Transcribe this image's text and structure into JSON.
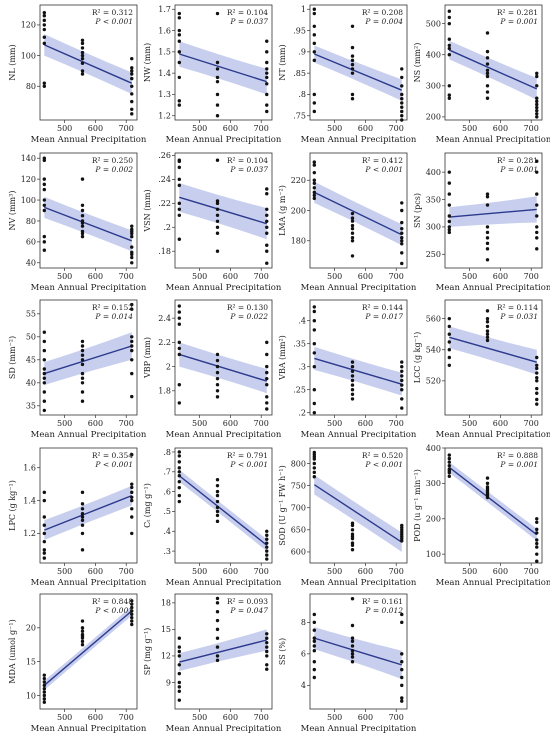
{
  "x_axis_label": "Mean Annual Precipitation",
  "x_ticks": [
    500,
    600,
    700
  ],
  "x_range": [
    420,
    735
  ],
  "x_groups": [
    434,
    558,
    718
  ],
  "colors": {
    "band": "#5566c8",
    "line": "#2b3a8c",
    "point": "#111111",
    "frame": "#333333"
  },
  "chart_data": [
    {
      "type": "scatter",
      "ylabel": "NL (mm)",
      "ylim": [
        58,
        133
      ],
      "yticks": [
        80,
        100,
        120
      ],
      "r2_text": "R² = 0.312",
      "p_text": "P < 0.001",
      "groups": [
        [
          128,
          126,
          123,
          120,
          117,
          112,
          108,
          82,
          80
        ],
        [
          110,
          108,
          105,
          102,
          100,
          98,
          95,
          90,
          88
        ],
        [
          98,
          92,
          90,
          88,
          85,
          80,
          75,
          70,
          65,
          62
        ]
      ],
      "fit": [
        107,
        82
      ],
      "ci": [
        [
          100,
          114
        ],
        [
          75,
          89
        ]
      ]
    },
    {
      "type": "scatter",
      "ylabel": "NW (mm)",
      "ylim": [
        1.18,
        1.72
      ],
      "yticks": [
        1.2,
        1.3,
        1.4,
        1.5,
        1.6,
        1.7
      ],
      "r2_text": "R² = 0.104",
      "p_text": "P = 0.037",
      "groups": [
        [
          1.68,
          1.66,
          1.6,
          1.58,
          1.55,
          1.5,
          1.45,
          1.38,
          1.27,
          1.25
        ],
        [
          1.68,
          1.45,
          1.42,
          1.38,
          1.36,
          1.3,
          1.25,
          1.2
        ],
        [
          1.55,
          1.5,
          1.45,
          1.42,
          1.4,
          1.38,
          1.35,
          1.3,
          1.25,
          1.22
        ]
      ],
      "fit": [
        1.49,
        1.36
      ],
      "ci": [
        [
          1.43,
          1.55
        ],
        [
          1.3,
          1.42
        ]
      ]
    },
    {
      "type": "scatter",
      "ylabel": "NT (mm)",
      "ylim": [
        0.74,
        1.01
      ],
      "yticks": [
        0.75,
        0.8,
        0.85,
        0.9,
        0.95,
        1.0
      ],
      "r2_text": "R² = 0.208",
      "p_text": "P = 0.004",
      "groups": [
        [
          1.0,
          0.99,
          0.96,
          0.94,
          0.92,
          0.9,
          0.88,
          0.8,
          0.78,
          0.76
        ],
        [
          0.96,
          0.91,
          0.89,
          0.88,
          0.87,
          0.86,
          0.85,
          0.8,
          0.79
        ],
        [
          0.86,
          0.84,
          0.82,
          0.8,
          0.79,
          0.78,
          0.77,
          0.76,
          0.75,
          0.74
        ]
      ],
      "fit": [
        0.895,
        0.81
      ],
      "ci": [
        [
          0.875,
          0.915
        ],
        [
          0.785,
          0.835
        ]
      ]
    },
    {
      "type": "scatter",
      "ylabel": "NS (mm²)",
      "ylim": [
        190,
        560
      ],
      "yticks": [
        200,
        300,
        400,
        500
      ],
      "r2_text": "R² = 0.281",
      "p_text": "P = 0.001",
      "groups": [
        [
          540,
          520,
          500,
          450,
          430,
          420,
          400,
          300,
          270,
          260
        ],
        [
          470,
          410,
          390,
          370,
          350,
          340,
          330,
          300,
          280,
          260
        ],
        [
          340,
          330,
          300,
          260,
          250,
          240,
          230,
          220,
          210,
          200
        ]
      ],
      "fit": [
        415,
        290
      ],
      "ci": [
        [
          385,
          445
        ],
        [
          255,
          325
        ]
      ]
    },
    {
      "type": "scatter",
      "ylabel": "NV (mm³)",
      "ylim": [
        35,
        145
      ],
      "yticks": [
        40,
        60,
        80,
        100,
        120,
        140
      ],
      "r2_text": "R² = 0.250",
      "p_text": "P = 0.002",
      "groups": [
        [
          140,
          138,
          120,
          115,
          110,
          100,
          95,
          90,
          65,
          60,
          52
        ],
        [
          120,
          95,
          90,
          85,
          80,
          78,
          75,
          70,
          68,
          65
        ],
        [
          75,
          72,
          70,
          68,
          65,
          55,
          50,
          48,
          45,
          40
        ]
      ],
      "fit": [
        93,
        61
      ],
      "ci": [
        [
          83,
          103
        ],
        [
          51,
          71
        ]
      ]
    },
    {
      "type": "scatter",
      "ylabel": "VSN (mm)",
      "ylim": [
        0.166,
        0.262
      ],
      "yticks": [
        0.18,
        0.2,
        0.22,
        0.24,
        0.26
      ],
      "r2_text": "R² = 0.104",
      "p_text": "P = 0.037",
      "groups": [
        [
          0.256,
          0.255,
          0.25,
          0.24,
          0.235,
          0.22,
          0.215,
          0.21,
          0.19
        ],
        [
          0.256,
          0.222,
          0.22,
          0.215,
          0.21,
          0.205,
          0.2,
          0.195,
          0.18
        ],
        [
          0.232,
          0.228,
          0.215,
          0.21,
          0.205,
          0.2,
          0.195,
          0.185,
          0.18,
          0.17
        ]
      ],
      "fit": [
        0.225,
        0.203
      ],
      "ci": [
        [
          0.213,
          0.237
        ],
        [
          0.19,
          0.216
        ]
      ]
    },
    {
      "type": "scatter",
      "ylabel": "LMA (g m⁻²)",
      "ylim": [
        162,
        238
      ],
      "yticks": [
        180,
        200,
        220
      ],
      "r2_text": "R² = 0.412",
      "p_text": "P < 0.001",
      "groups": [
        [
          232,
          230,
          225,
          220,
          218,
          215,
          212,
          210,
          208
        ],
        [
          198,
          195,
          193,
          190,
          188,
          185,
          182,
          180,
          170
        ],
        [
          205,
          200,
          192,
          188,
          185,
          182,
          180,
          178,
          172,
          165
        ]
      ],
      "fit": [
        212,
        184
      ],
      "ci": [
        [
          205,
          219
        ],
        [
          177,
          191
        ]
      ]
    },
    {
      "type": "scatter",
      "ylabel": "SN (pcs)",
      "ylim": [
        225,
        435
      ],
      "yticks": [
        250,
        300,
        350,
        400
      ],
      "r2_text": "R² = 0.281",
      "p_text": "P = 0.001",
      "groups": [
        [
          400,
          380,
          360,
          340,
          320,
          310,
          300,
          295,
          290
        ],
        [
          360,
          355,
          340,
          300,
          290,
          280,
          270,
          260,
          240
        ],
        [
          420,
          400,
          360,
          340,
          320,
          300,
          290,
          280,
          260
        ]
      ],
      "fit": [
        318,
        332
      ],
      "ci": [
        [
          300,
          336
        ],
        [
          308,
          356
        ]
      ]
    },
    {
      "type": "scatter",
      "ylabel": "SD (mm⁻²)",
      "ylim": [
        33,
        58
      ],
      "yticks": [
        35,
        40,
        45,
        50,
        55
      ],
      "r2_text": "R² = 0.152",
      "p_text": "P = 0.014",
      "groups": [
        [
          51,
          49,
          47,
          45,
          43,
          42,
          41,
          40,
          38,
          36,
          34
        ],
        [
          49,
          48,
          47,
          46,
          45,
          44,
          42,
          41,
          40,
          38,
          36
        ],
        [
          57,
          56,
          50,
          49,
          48,
          47,
          45,
          42,
          37
        ]
      ],
      "fit": [
        42,
        48
      ],
      "ci": [
        [
          39.5,
          44.5
        ],
        [
          45,
          51
        ]
      ]
    },
    {
      "type": "scatter",
      "ylabel": "VBP (mm)",
      "ylim": [
        1.6,
        2.55
      ],
      "yticks": [
        1.8,
        2.0,
        2.2,
        2.4
      ],
      "r2_text": "R² = 0.130",
      "p_text": "P = 0.022",
      "groups": [
        [
          2.5,
          2.45,
          2.4,
          2.35,
          2.2,
          2.15,
          2.1,
          1.85,
          1.7
        ],
        [
          2.1,
          2.05,
          2.0,
          1.95,
          1.9,
          1.85,
          1.8,
          1.75
        ],
        [
          2.2,
          2.1,
          2.0,
          1.95,
          1.9,
          1.85,
          1.75,
          1.7,
          1.65
        ]
      ],
      "fit": [
        2.1,
        1.88
      ],
      "ci": [
        [
          2.0,
          2.2
        ],
        [
          1.78,
          1.98
        ]
      ]
    },
    {
      "type": "scatter",
      "ylabel": "VBA (mm²)",
      "ylim": [
        0.195,
        0.445
      ],
      "yticks": [
        0.2,
        0.25,
        0.3,
        0.35,
        0.4
      ],
      "r2_text": "R² = 0.144",
      "p_text": "P = 0.017",
      "groups": [
        [
          0.43,
          0.42,
          0.4,
          0.38,
          0.35,
          0.33,
          0.3,
          0.25,
          0.22,
          0.2
        ],
        [
          0.31,
          0.3,
          0.29,
          0.28,
          0.27,
          0.26,
          0.25,
          0.24,
          0.23
        ],
        [
          0.31,
          0.3,
          0.29,
          0.28,
          0.27,
          0.26,
          0.25,
          0.23,
          0.21
        ]
      ],
      "fit": [
        0.318,
        0.262
      ],
      "ci": [
        [
          0.293,
          0.343
        ],
        [
          0.237,
          0.287
        ]
      ]
    },
    {
      "type": "scatter",
      "ylabel": "LCC (g kg⁻¹)",
      "ylim": [
        498,
        572
      ],
      "yticks": [
        520,
        540,
        560
      ],
      "r2_text": "R² = 0.114",
      "p_text": "P = 0.031",
      "groups": [
        [
          560,
          555,
          550,
          545,
          540,
          535,
          530
        ],
        [
          565,
          560,
          558,
          555,
          552,
          550,
          548,
          546
        ],
        [
          535,
          530,
          528,
          525,
          522,
          520,
          515,
          512,
          508,
          505
        ]
      ],
      "fit": [
        548,
        532
      ],
      "ci": [
        [
          541,
          555
        ],
        [
          524,
          540
        ]
      ]
    },
    {
      "type": "scatter",
      "ylabel": "LPC (g kg⁻¹)",
      "ylim": [
        1.02,
        1.72
      ],
      "yticks": [
        1.2,
        1.4,
        1.6
      ],
      "r2_text": "R² = 0.354",
      "p_text": "P < 0.001",
      "groups": [
        [
          1.45,
          1.4,
          1.3,
          1.25,
          1.2,
          1.15,
          1.1,
          1.08,
          1.05
        ],
        [
          1.45,
          1.38,
          1.35,
          1.32,
          1.3,
          1.28,
          1.25,
          1.2,
          1.1
        ],
        [
          1.68,
          1.5,
          1.48,
          1.45,
          1.42,
          1.4,
          1.35,
          1.3,
          1.2
        ]
      ],
      "fit": [
        1.22,
        1.43
      ],
      "ci": [
        [
          1.16,
          1.28
        ],
        [
          1.37,
          1.49
        ]
      ]
    },
    {
      "type": "scatter",
      "ylabel": "Cₜ (mg g⁻¹)",
      "ylim": [
        0.24,
        0.82
      ],
      "yticks": [
        0.3,
        0.4,
        0.5,
        0.6,
        0.7,
        0.8
      ],
      "r2_text": "R² = 0.791",
      "p_text": "P < 0.001",
      "groups": [
        [
          0.8,
          0.78,
          0.75,
          0.72,
          0.7,
          0.68,
          0.65,
          0.62,
          0.58,
          0.55
        ],
        [
          0.66,
          0.63,
          0.6,
          0.58,
          0.55,
          0.52,
          0.5,
          0.48,
          0.45
        ],
        [
          0.4,
          0.38,
          0.36,
          0.34,
          0.32,
          0.3,
          0.28,
          0.26
        ]
      ],
      "fit": [
        0.68,
        0.33
      ],
      "ci": [
        [
          0.65,
          0.71
        ],
        [
          0.3,
          0.36
        ]
      ]
    },
    {
      "type": "scatter",
      "ylabel": "SOD (U g⁻¹ FW h⁻¹)",
      "ylim": [
        575,
        835
      ],
      "yticks": [
        600,
        650,
        700,
        750,
        800
      ],
      "r2_text": "R² = 0.520",
      "p_text": "P < 0.001",
      "groups": [
        [
          825,
          820,
          815,
          810,
          800,
          790,
          780,
          770
        ],
        [
          665,
          660,
          650,
          640,
          635,
          630,
          620,
          615,
          605
        ],
        [
          660,
          655,
          650,
          645,
          640,
          635,
          630,
          625
        ]
      ],
      "fit": [
        752,
        622
      ],
      "ci": [
        [
          730,
          774
        ],
        [
          600,
          644
        ]
      ]
    },
    {
      "type": "scatter",
      "ylabel": "POD (u g⁻¹ min⁻¹)",
      "ylim": [
        75,
        400
      ],
      "yticks": [
        100,
        200,
        300,
        400
      ],
      "r2_text": "R² = 0.888",
      "p_text": "P = 0.001",
      "groups": [
        [
          380,
          370,
          360,
          350,
          340,
          335,
          330,
          320
        ],
        [
          315,
          300,
          290,
          285,
          280,
          275,
          270,
          265,
          260
        ],
        [
          200,
          190,
          170,
          160,
          140,
          130,
          120,
          100,
          80
        ]
      ],
      "fit": [
        345,
        155
      ],
      "ci": [
        [
          330,
          360
        ],
        [
          138,
          172
        ]
      ]
    },
    {
      "type": "scatter",
      "ylabel": "MDA (umol g⁻¹)",
      "ylim": [
        8,
        25
      ],
      "yticks": [
        10,
        15,
        20
      ],
      "r2_text": "R² = 0.848",
      "p_text": "P < 0.001",
      "groups": [
        [
          13,
          12.5,
          12,
          11.5,
          11,
          10.5,
          10,
          9.5,
          9
        ],
        [
          21,
          20,
          19.5,
          19,
          18.8,
          18.5,
          18,
          17.5
        ],
        [
          24,
          23.5,
          23,
          22.5,
          22,
          21.5,
          21,
          20.5
        ]
      ],
      "fit": [
        11.5,
        22.5
      ],
      "ci": [
        [
          10.8,
          12.2
        ],
        [
          21.8,
          23.2
        ]
      ]
    },
    {
      "type": "scatter",
      "ylabel": "SP (mg g⁻¹)",
      "ylim": [
        6,
        19
      ],
      "yticks": [
        9,
        12,
        15,
        18
      ],
      "r2_text": "R² = 0.093",
      "p_text": "P = 0.047",
      "groups": [
        [
          14,
          13,
          12.5,
          12,
          11,
          10,
          9,
          8.5,
          8,
          7
        ],
        [
          18.5,
          18,
          17,
          16,
          15,
          14,
          13,
          12,
          11.5
        ],
        [
          14.5,
          14,
          13.5,
          13,
          12.5,
          12,
          11,
          10.5
        ]
      ],
      "fit": [
        11.3,
        13.8
      ],
      "ci": [
        [
          10.3,
          12.3
        ],
        [
          12.6,
          15.0
        ]
      ]
    },
    {
      "type": "scatter",
      "ylabel": "SS (%)",
      "ylim": [
        2.5,
        9.8
      ],
      "yticks": [
        4,
        6,
        8
      ],
      "r2_text": "R² = 0.161",
      "p_text": "P = 0.012",
      "groups": [
        [
          8.5,
          8,
          7.5,
          7,
          6.8,
          6.5,
          6.2,
          5.5,
          5,
          4.5
        ],
        [
          9.5,
          7.8,
          7,
          6.8,
          6.5,
          6.2,
          6,
          5.8,
          5.5
        ],
        [
          8.5,
          8,
          6,
          5.5,
          5,
          4.5,
          4,
          3.2,
          3
        ]
      ],
      "fit": [
        7.0,
        5.3
      ],
      "ci": [
        [
          6.3,
          7.7
        ],
        [
          4.4,
          6.2
        ]
      ]
    }
  ]
}
